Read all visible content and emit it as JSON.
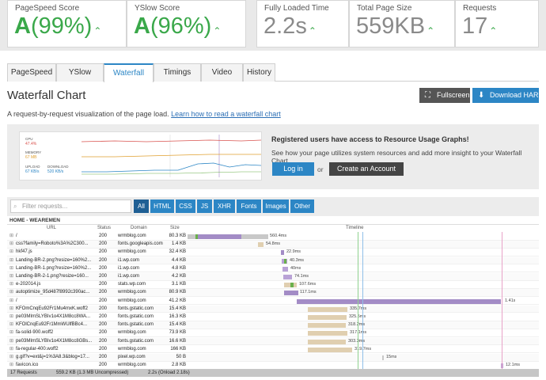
{
  "scores": {
    "pagespeed": {
      "label": "PageSpeed Score",
      "grade": "A",
      "value": "(99%)",
      "arrow": "⌃"
    },
    "yslow": {
      "label": "YSlow Score",
      "grade": "A",
      "value": "(96%)",
      "arrow": "⌃"
    },
    "load": {
      "label": "Fully Loaded Time",
      "value": "2.2s",
      "arrow": "⌃"
    },
    "size": {
      "label": "Total Page Size",
      "value": "559KB",
      "arrow": "⌃"
    },
    "requests": {
      "label": "Requests",
      "value": "17",
      "arrow": "⌃"
    }
  },
  "tabs": [
    "PageSpeed",
    "YSlow",
    "Waterfall",
    "Timings",
    "Video",
    "History"
  ],
  "active_tab": "Waterfall",
  "title": "Waterfall Chart",
  "buttons": {
    "fullscreen": "Fullscreen",
    "download": "Download HAR"
  },
  "description": {
    "text": "A request-by-request visualization of the page load.",
    "link": "Learn how to read a waterfall chart"
  },
  "promo": {
    "title": "Registered users have access to Resource Usage Graphs!",
    "text": "See how your page utilizes system resources and add more insight to your Waterfall Chart.",
    "login": "Log in",
    "or": "or",
    "create": "Create an Account",
    "thumb": {
      "cpu_label": "CPU",
      "cpu_value": "47.4%",
      "mem_label": "MEMORY",
      "mem_value": "67 MB",
      "up_label": "UPLOAD",
      "up_value": "67 KB/s",
      "down_label": "DOWNLOAD",
      "down_value": "520 KB/s"
    }
  },
  "waterfall": {
    "filter_placeholder": "Filter requests...",
    "filters": [
      "All",
      "HTML",
      "CSS",
      "JS",
      "XHR",
      "Fonts",
      "Images",
      "Other"
    ],
    "group": "HOME - WEAREMEN",
    "columns": {
      "url": "URL",
      "status": "Status",
      "domain": "Domain",
      "size": "Size",
      "timeline": "Timeline"
    },
    "rows": [
      {
        "url": "/",
        "status": "200",
        "domain": "wrmblog.com",
        "size": "80.3 KB",
        "time": "560.4ms"
      },
      {
        "url": "css?family=Roboto%3A%2C300...",
        "status": "200",
        "domain": "fonts.googleapis.com",
        "size": "1.4 KB",
        "time": "54.8ms"
      },
      {
        "url": "hkf47.js",
        "status": "200",
        "domain": "wrmblog.com",
        "size": "32.4 KB",
        "time": "22.9ms"
      },
      {
        "url": "Landing-BR-2.png?resize=160%2...",
        "status": "200",
        "domain": "i1.wp.com",
        "size": "4.4 KB",
        "time": "40.3ms"
      },
      {
        "url": "Landing-BR-1.png?resize=160%2...",
        "status": "200",
        "domain": "i1.wp.com",
        "size": "4.8 KB",
        "time": "40ms"
      },
      {
        "url": "Landing-BR-2-1.png?resize=160...",
        "status": "200",
        "domain": "i1.wp.com",
        "size": "4.2 KB",
        "time": "74.1ms"
      },
      {
        "url": "e-202014.js",
        "status": "200",
        "domain": "stats.wp.com",
        "size": "3.1 KB",
        "time": "107.6ms"
      },
      {
        "url": "autoptimize_95d487f8992c390ac...",
        "status": "200",
        "domain": "wrmblog.com",
        "size": "80.9 KB",
        "time": "117.1ms"
      },
      {
        "url": "/",
        "status": "200",
        "domain": "wrmblog.com",
        "size": "41.2 KB",
        "time": "1.41s"
      },
      {
        "url": "KFOmCnqEu92Fr1Mu4mxK.woff2",
        "status": "200",
        "domain": "fonts.gstatic.com",
        "size": "15.4 KB",
        "time": "335.7ms"
      },
      {
        "url": "pe03MImSLYBIv1o4X1M8cc8WA...",
        "status": "200",
        "domain": "fonts.gstatic.com",
        "size": "16.3 KB",
        "time": "325.5ms"
      },
      {
        "url": "KFOlCnqEu92Fr1MmWUlfBBc4...",
        "status": "200",
        "domain": "fonts.gstatic.com",
        "size": "15.4 KB",
        "time": "318.2ms"
      },
      {
        "url": "fa-solid-900.woff2",
        "status": "200",
        "domain": "wrmblog.com",
        "size": "73.9 KB",
        "time": "317.1ms"
      },
      {
        "url": "pe03MImSLYBIv1o4X1M8cc8GBs...",
        "status": "200",
        "domain": "fonts.gstatic.com",
        "size": "16.6 KB",
        "time": "303.3ms"
      },
      {
        "url": "fa-regular-400.woff2",
        "status": "200",
        "domain": "wrmblog.com",
        "size": "166 KB",
        "time": "319.7ms"
      },
      {
        "url": "g.gif?v=ext&j=1%3A8.3&blog=17...",
        "status": "200",
        "domain": "pixel.wp.com",
        "size": "50 B",
        "time": "15ms"
      },
      {
        "url": "favicon.ico",
        "status": "200",
        "domain": "wrmblog.com",
        "size": "2.8 KB",
        "time": "12.1ms"
      }
    ],
    "footer": {
      "requests": "17 Requests",
      "size": "559.2 KB  (1.3 MB Uncompressed)",
      "time": "2.2s  (Onload 2.18s)"
    }
  },
  "colors": {
    "accent": "#2c86c5",
    "good": "#3aa84a",
    "html_bar": "#a38cc6",
    "font_bar": "#e0cfb0",
    "image_bar": "#b9a2d6",
    "wait": "#c8c8c8"
  }
}
